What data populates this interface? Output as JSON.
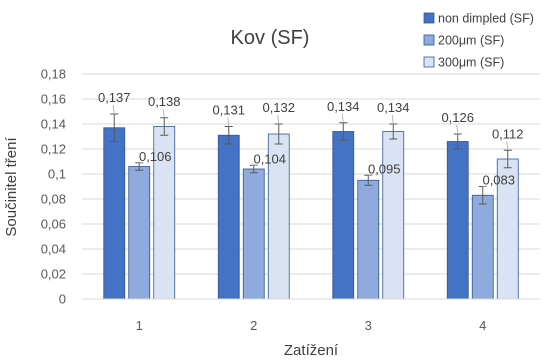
{
  "chart_data": {
    "type": "bar",
    "title": "Kov (SF)",
    "xlabel": "Zatížení",
    "ylabel": "Součinitel tření",
    "categories": [
      "1",
      "2",
      "3",
      "4"
    ],
    "ylim": [
      0,
      0.18
    ],
    "yticks": [
      0,
      0.02,
      0.04,
      0.06,
      0.08,
      0.1,
      0.12,
      0.14,
      0.16,
      0.18
    ],
    "ytick_labels": [
      "0",
      "0,02",
      "0,04",
      "0,06",
      "0,08",
      "0,1",
      "0,12",
      "0,14",
      "0,16",
      "0,18"
    ],
    "grid": true,
    "legend_position": "top-right",
    "series": [
      {
        "name": "non dimpled (SF)",
        "color": "#4472C4",
        "values": [
          0.137,
          0.131,
          0.134,
          0.126
        ],
        "labels": [
          "0,137",
          "0,131",
          "0,134",
          "0,126"
        ],
        "errors": [
          0.011,
          0.007,
          0.007,
          0.006
        ]
      },
      {
        "name": "200μm (SF)",
        "color": "#8FAADC",
        "values": [
          0.106,
          0.104,
          0.095,
          0.083
        ],
        "labels": [
          "0,106",
          "0,104",
          "0,095",
          "0,083"
        ],
        "errors": [
          0.003,
          0.003,
          0.004,
          0.007
        ]
      },
      {
        "name": "300μm (SF)",
        "color": "#DAE3F3",
        "values": [
          0.138,
          0.132,
          0.134,
          0.112
        ],
        "labels": [
          "0,138",
          "0,132",
          "0,134",
          "0,112"
        ],
        "errors": [
          0.007,
          0.008,
          0.006,
          0.007
        ]
      }
    ]
  }
}
